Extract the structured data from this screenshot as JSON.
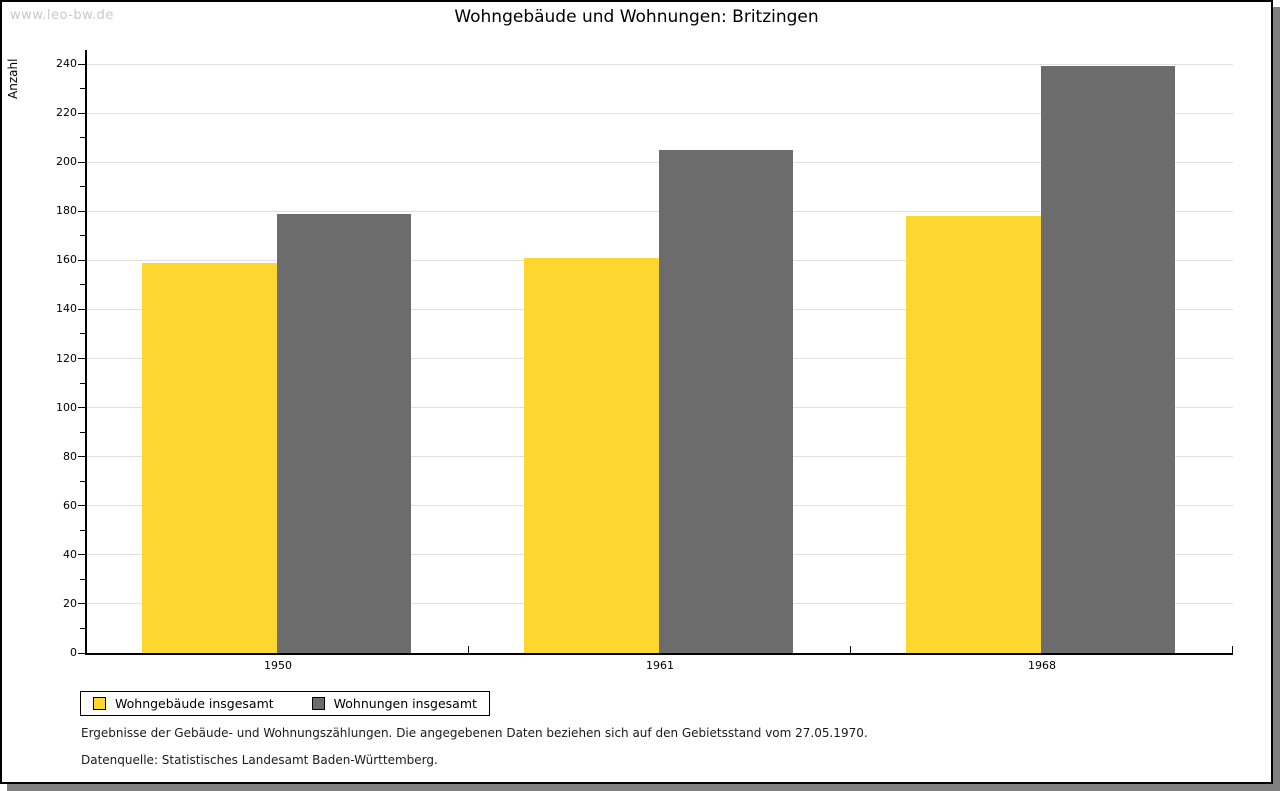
{
  "page": {
    "watermark": "www.leo-bw.de",
    "title": "Wohngebäude und Wohnungen: Britzingen"
  },
  "chart_data": {
    "type": "bar",
    "title": "Wohngebäude und Wohnungen: Britzingen",
    "categories": [
      "1950",
      "1961",
      "1968"
    ],
    "series": [
      {
        "name": "Wohngebäude insgesamt",
        "color": "#FDD62F",
        "values": [
          159,
          161,
          178
        ]
      },
      {
        "name": "Wohnungen insgesamt",
        "color": "#6C6C6C",
        "values": [
          179,
          205,
          239
        ]
      }
    ],
    "xlabel": "",
    "ylabel": "Anzahl",
    "ylim": [
      0,
      240
    ],
    "y_tick_major": 20,
    "y_tick_minor": 10,
    "grid": true,
    "legend_position": "bottom-left"
  },
  "footnotes": [
    "Ergebnisse der Gebäude- und Wohnungszählungen. Die angegebenen Daten beziehen sich auf den Gebietsstand vom 27.05.1970.",
    "Datenquelle: Statistisches Landesamt Baden-Württemberg."
  ],
  "colors": {
    "grid": "#E0E0E0",
    "axis": "#000000",
    "watermark": "#C9C9C9",
    "page_shadow": "#808080",
    "background": "#FFFFFF"
  }
}
